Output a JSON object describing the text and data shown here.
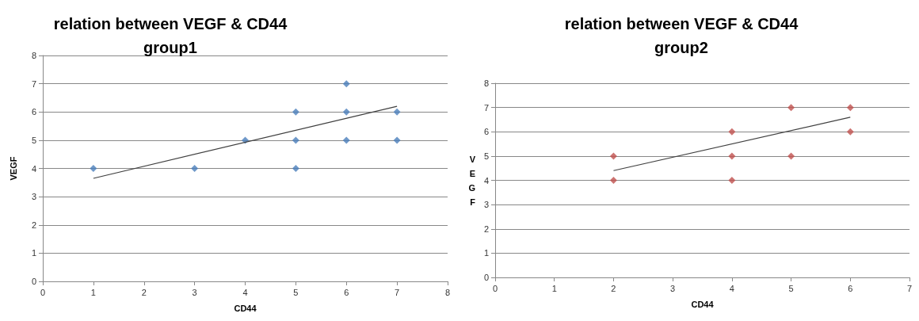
{
  "chart_data": [
    {
      "type": "scatter",
      "title": "relation between VEGF & CD44\ngroup1",
      "xlabel": "CD44",
      "ylabel": "VEGF",
      "xlim": [
        0,
        8
      ],
      "xticks": [
        0,
        1,
        2,
        3,
        4,
        5,
        6,
        7,
        8
      ],
      "ylim": [
        0,
        8
      ],
      "yticks": [
        0,
        1,
        2,
        3,
        4,
        5,
        6,
        7,
        8
      ],
      "grid": "y",
      "marker": "diamond",
      "series": [
        {
          "color": "#4a7ebb",
          "x": [
            1,
            3,
            4,
            5,
            5,
            5,
            6,
            6,
            6,
            7,
            7
          ],
          "values": [
            4,
            4,
            5,
            6,
            5,
            4,
            7,
            6,
            5,
            6,
            5
          ]
        },
        {
          "type": "line",
          "marker": "none",
          "color": "#404040",
          "x": [
            1,
            7
          ],
          "values": [
            3.65,
            6.2
          ]
        }
      ]
    },
    {
      "type": "scatter",
      "title": "relation between VEGF & CD44\ngroup2",
      "xlabel": "CD44",
      "ylabel": "VEGF",
      "xlim": [
        0,
        7
      ],
      "xticks": [
        0,
        1,
        2,
        3,
        4,
        5,
        6,
        7
      ],
      "ylim": [
        0,
        8
      ],
      "yticks": [
        0,
        1,
        2,
        3,
        4,
        5,
        6,
        7,
        8
      ],
      "grid": "y",
      "marker": "diamond",
      "series": [
        {
          "color": "#c0504d",
          "x": [
            2,
            2,
            4,
            4,
            4,
            5,
            5,
            6,
            6
          ],
          "values": [
            5,
            4,
            6,
            5,
            4,
            7,
            5,
            7,
            6
          ]
        },
        {
          "type": "line",
          "marker": "none",
          "color": "#404040",
          "x": [
            2,
            6
          ],
          "values": [
            4.4,
            6.6
          ]
        }
      ]
    }
  ]
}
